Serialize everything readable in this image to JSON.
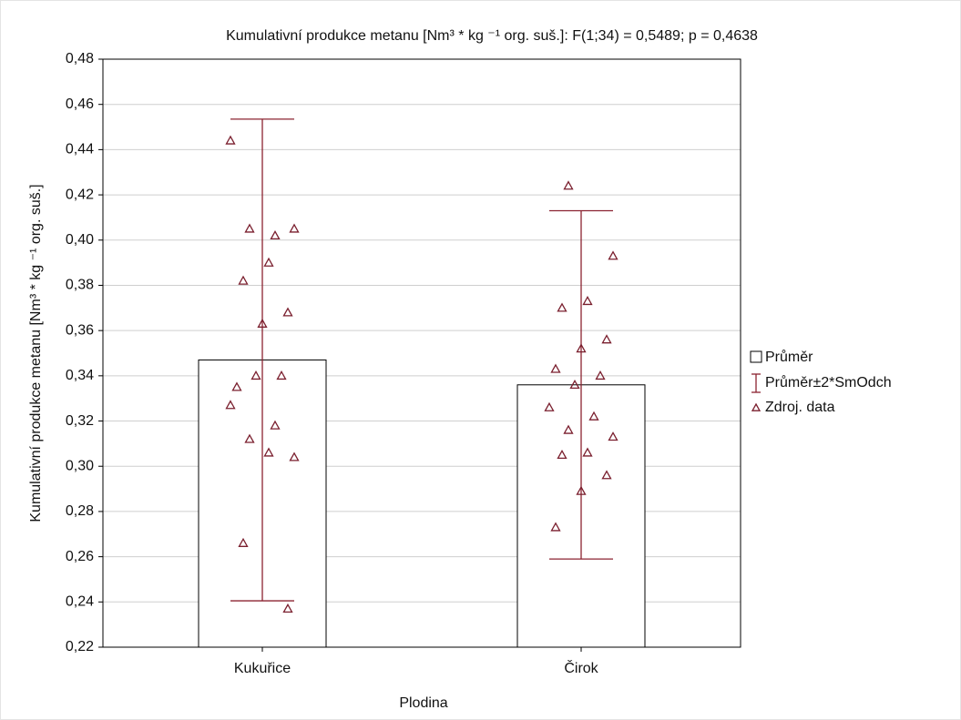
{
  "chart_data": {
    "type": "bar",
    "title": "Kumulativní produkce metanu [Nm³ * kg ⁻¹ org. suš.]:   F(1;34) = 0,5489; p = 0,4638",
    "x_label": "Plodina",
    "y_label": "Kumulativní produkce metanu [Nm³ * kg ⁻¹ org. suš.]",
    "categories": [
      "Kukuřice",
      "Čirok"
    ],
    "series": [
      {
        "name": "Průměr",
        "color": "#ffffff",
        "values": [
          0.347,
          0.336
        ],
        "error_name": "Průměr±2*SmOdch",
        "error_color": "#8b2331",
        "errors": [
          0.1065,
          0.077
        ]
      },
      {
        "name": "Zdroj. data",
        "color": "#7a1f2e",
        "values": [
          [
            0.444,
            0.402,
            0.405,
            0.405,
            0.39,
            0.382,
            0.368,
            0.363,
            0.335,
            0.34,
            0.34,
            0.327,
            0.318,
            0.312,
            0.304,
            0.306,
            0.266,
            0.237
          ],
          [
            0.424,
            0.393,
            0.373,
            0.37,
            0.356,
            0.352,
            0.343,
            0.34,
            0.336,
            0.326,
            0.322,
            0.316,
            0.313,
            0.306,
            0.305,
            0.296,
            0.289,
            0.273
          ]
        ]
      }
    ],
    "ylim": [
      0.22,
      0.48
    ],
    "yticks": [
      {
        "value": 0.22,
        "label": "0,22"
      },
      {
        "value": 0.24,
        "label": "0,24"
      },
      {
        "value": 0.26,
        "label": "0,26"
      },
      {
        "value": 0.28,
        "label": "0,28"
      },
      {
        "value": 0.3,
        "label": "0,30"
      },
      {
        "value": 0.32,
        "label": "0,32"
      },
      {
        "value": 0.34,
        "label": "0,34"
      },
      {
        "value": 0.36,
        "label": "0,36"
      },
      {
        "value": 0.38,
        "label": "0,38"
      },
      {
        "value": 0.4,
        "label": "0,40"
      },
      {
        "value": 0.42,
        "label": "0,42"
      },
      {
        "value": 0.44,
        "label": "0,44"
      },
      {
        "value": 0.46,
        "label": "0,46"
      },
      {
        "value": 0.48,
        "label": "0,48"
      }
    ],
    "grid": true,
    "legend": "right"
  }
}
